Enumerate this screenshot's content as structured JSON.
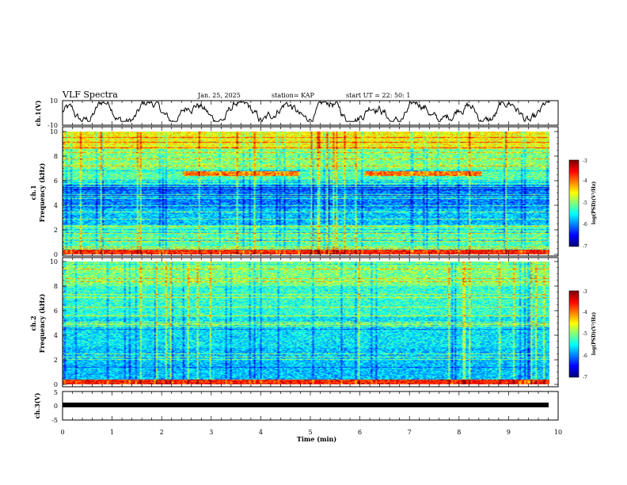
{
  "header": {
    "title": "VLF Spectra",
    "date": "Jan. 25, 2025",
    "station": "station= KAP",
    "start": "start UT =  22: 50: 1"
  },
  "chart_data": [
    {
      "type": "line",
      "ylabel": "ch.1(V)",
      "ylim": [
        -10,
        10
      ],
      "y_tick_labels": [
        "-10",
        "10"
      ],
      "xlim": [
        0,
        10
      ],
      "description_values": "noisy waveform between about -7 and 9 V",
      "series": [
        {
          "values_min": -7,
          "values_max": 9
        }
      ]
    },
    {
      "type": "heatmap",
      "ylabel": "ch.1 Frequency (kHz)",
      "ylim": [
        0,
        10
      ],
      "y_tick_labels": [
        "0",
        "2",
        "4",
        "6",
        "8",
        "10"
      ],
      "xlim": [
        0,
        9.85
      ],
      "colorbar": {
        "label": "log(PSD)(V²/Hz)",
        "range": [
          -7,
          -3
        ],
        "tick_labels": [
          "-3",
          "-4",
          "-5",
          "-6",
          "-7"
        ]
      }
    },
    {
      "type": "heatmap",
      "ylabel": "ch.2 Frequency (kHz)",
      "ylim": [
        0,
        10
      ],
      "y_tick_labels": [
        "0",
        "2",
        "4",
        "6",
        "8",
        "10"
      ],
      "xlim": [
        0,
        9.85
      ],
      "colorbar": {
        "label": "log(PSD)(V²/Hz)",
        "range": [
          -7,
          -3
        ],
        "tick_labels": [
          "-3",
          "-4",
          "-5",
          "-6",
          "-7"
        ]
      }
    },
    {
      "type": "line",
      "ylabel": "ch.3(V)",
      "ylim": [
        -5,
        5
      ],
      "y_tick_labels": [
        "-5",
        "0",
        "5"
      ],
      "xlim": [
        0,
        10
      ],
      "series": [
        {
          "values_min": -0.5,
          "values_max": 0.5
        }
      ]
    }
  ],
  "xaxis": {
    "label": "Time (min)",
    "tick_labels": [
      "0",
      "1",
      "2",
      "3",
      "4",
      "5",
      "6",
      "7",
      "8",
      "9",
      "10"
    ],
    "range": [
      0,
      10
    ]
  }
}
